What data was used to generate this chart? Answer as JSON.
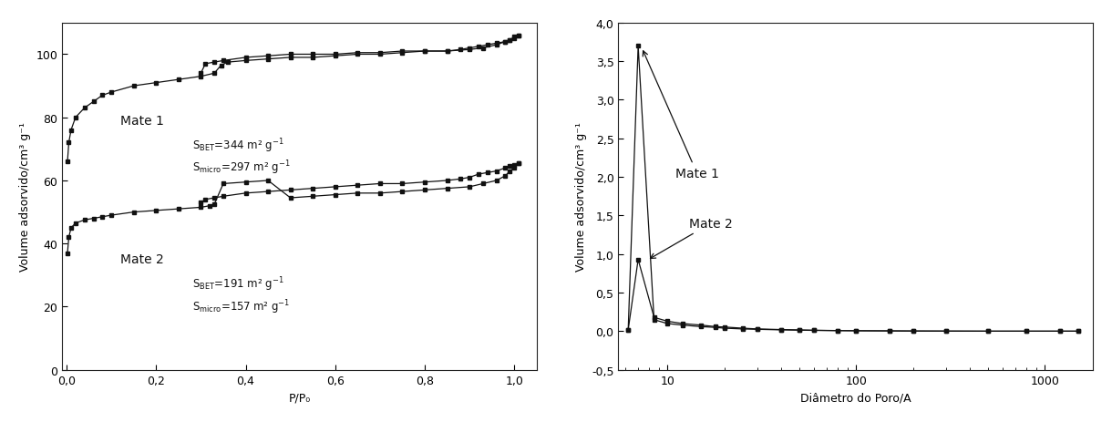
{
  "left": {
    "xlabel": "P/P₀",
    "ylabel": "Volume adsorvido/cm³ g⁻¹",
    "xlim": [
      -0.01,
      1.05
    ],
    "ylim": [
      0,
      110
    ],
    "yticks": [
      0,
      20,
      40,
      60,
      80,
      100
    ],
    "xticks": [
      0.0,
      0.2,
      0.4,
      0.6,
      0.8,
      1.0
    ],
    "xtick_labels": [
      "0,0",
      "0,2",
      "0,4",
      "0,6",
      "0,8",
      "1,0"
    ],
    "mate1_label": "Mate 1",
    "mate2_label": "Mate 2",
    "mate1_ads_x": [
      0.002,
      0.005,
      0.01,
      0.02,
      0.04,
      0.06,
      0.08,
      0.1,
      0.15,
      0.2,
      0.25,
      0.3,
      0.33,
      0.345,
      0.36,
      0.4,
      0.45,
      0.5,
      0.55,
      0.6,
      0.65,
      0.7,
      0.75,
      0.8,
      0.85,
      0.9,
      0.93,
      0.96,
      0.98,
      0.99,
      1.0,
      1.01
    ],
    "mate1_ads_y": [
      66,
      72,
      76,
      80,
      83,
      85,
      87,
      88,
      90,
      91,
      92,
      93,
      94,
      96.5,
      97.5,
      98,
      98.5,
      99,
      99,
      99.5,
      100,
      100,
      100.5,
      101,
      101,
      101.5,
      102,
      103,
      104,
      104.5,
      105.5,
      106
    ],
    "mate1_des_x": [
      1.01,
      1.0,
      0.99,
      0.98,
      0.96,
      0.94,
      0.92,
      0.9,
      0.88,
      0.85,
      0.8,
      0.75,
      0.7,
      0.65,
      0.6,
      0.55,
      0.5,
      0.45,
      0.4,
      0.35,
      0.33,
      0.31,
      0.3
    ],
    "mate1_des_y": [
      106,
      105,
      104.5,
      104,
      103.5,
      103,
      102.5,
      102,
      101.5,
      101,
      101,
      101,
      100.5,
      100.5,
      100,
      100,
      100,
      99.5,
      99,
      98,
      97.5,
      97,
      94
    ],
    "mate2_ads_x": [
      0.002,
      0.005,
      0.01,
      0.02,
      0.04,
      0.06,
      0.08,
      0.1,
      0.15,
      0.2,
      0.25,
      0.3,
      0.33,
      0.345,
      0.36,
      0.4,
      0.45,
      0.5,
      0.55,
      0.6,
      0.65,
      0.7,
      0.75,
      0.8,
      0.85,
      0.9,
      0.93,
      0.96,
      0.98,
      0.99,
      1.0,
      1.01
    ],
    "mate2_ads_y": [
      37,
      42,
      45,
      46.5,
      47.5,
      48,
      48.5,
      49,
      50,
      50.5,
      51,
      51.5,
      52.5,
      53.5,
      59,
      59.5,
      60,
      54.5,
      55,
      55.5,
      56,
      56,
      56.5,
      57,
      57.5,
      58,
      59,
      60,
      61.5,
      63,
      64,
      65.5
    ],
    "mate2_des_x": [
      1.01,
      1.0,
      0.99,
      0.98,
      0.96,
      0.94,
      0.92,
      0.9,
      0.88,
      0.85,
      0.8,
      0.75,
      0.7,
      0.65,
      0.6,
      0.55,
      0.5,
      0.45,
      0.4,
      0.35,
      0.33,
      0.31,
      0.3
    ],
    "mate2_des_y": [
      65.5,
      65,
      64.5,
      64,
      63,
      62.5,
      62,
      61,
      60.5,
      60,
      59.5,
      59,
      59,
      58.5,
      58,
      57.5,
      57,
      56.5,
      56,
      55,
      54.5,
      54,
      53
    ]
  },
  "right": {
    "xlabel": "Diâmetro do Poro/A",
    "ylabel": "Volume adsorvido/cm³ g⁻¹",
    "xlim": [
      5.5,
      1800
    ],
    "ylim": [
      -0.5,
      4.0
    ],
    "yticks": [
      -0.5,
      0.0,
      0.5,
      1.0,
      1.5,
      2.0,
      2.5,
      3.0,
      3.5,
      4.0
    ],
    "ytick_labels": [
      "-0,5",
      "0,0",
      "0,5",
      "1,0",
      "1,5",
      "2,0",
      "2,5",
      "3,0",
      "3,5",
      "4,0"
    ],
    "mate1_label": "Mate 1",
    "mate2_label": "Mate 2",
    "mate1_x": [
      6.2,
      7.0,
      8.5,
      10,
      12,
      15,
      18,
      20,
      25,
      30,
      40,
      50,
      60,
      80,
      100,
      150,
      200,
      300,
      500,
      800,
      1200,
      1500
    ],
    "mate1_y": [
      0.02,
      3.7,
      0.15,
      0.1,
      0.08,
      0.06,
      0.05,
      0.04,
      0.03,
      0.025,
      0.018,
      0.014,
      0.011,
      0.008,
      0.006,
      0.004,
      0.003,
      0.002,
      0.001,
      0.001,
      0.001,
      0.001
    ],
    "mate2_x": [
      6.2,
      7.0,
      8.5,
      10,
      12,
      15,
      18,
      20,
      25,
      30,
      40,
      50,
      60,
      80,
      100,
      150,
      200,
      300,
      500,
      800,
      1200,
      1500
    ],
    "mate2_y": [
      0.02,
      0.93,
      0.18,
      0.13,
      0.1,
      0.08,
      0.06,
      0.055,
      0.04,
      0.03,
      0.022,
      0.017,
      0.013,
      0.009,
      0.007,
      0.005,
      0.003,
      0.002,
      0.001,
      0.001,
      0.001,
      0.001
    ]
  },
  "line_color": "#111111",
  "marker": "s",
  "markersize": 3.0,
  "bg_color": "#ffffff",
  "fontsize_label": 9,
  "fontsize_tick": 9,
  "fontsize_annot": 10
}
